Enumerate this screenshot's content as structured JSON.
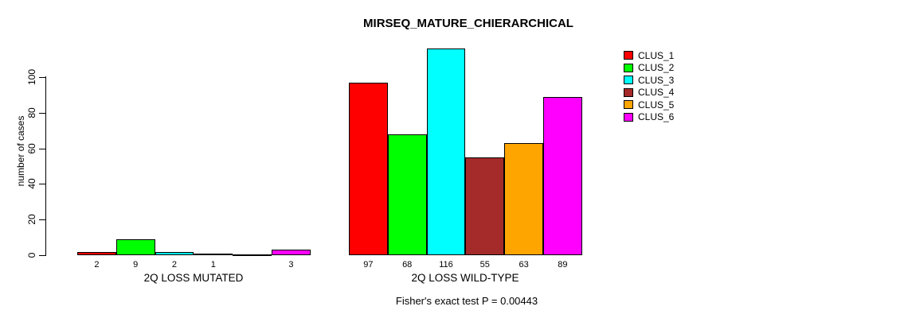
{
  "chart_data": {
    "type": "bar",
    "title": "MIRSEQ_MATURE_CHIERARCHICAL",
    "ylabel": "number of cases",
    "xlabel": "",
    "ylim": [
      0,
      116
    ],
    "yticks": [
      0,
      20,
      40,
      60,
      80,
      100
    ],
    "grid": false,
    "legend_position": "top-right",
    "categories": [
      "2Q LOSS MUTATED",
      "2Q LOSS WILD-TYPE"
    ],
    "series": [
      {
        "name": "CLUS_1",
        "color": "#FF0000",
        "values": [
          2,
          97
        ]
      },
      {
        "name": "CLUS_2",
        "color": "#00FF00",
        "values": [
          9,
          68
        ]
      },
      {
        "name": "CLUS_3",
        "color": "#00FFFF",
        "values": [
          2,
          116
        ]
      },
      {
        "name": "CLUS_4",
        "color": "#A52A2A",
        "values": [
          1,
          55
        ]
      },
      {
        "name": "CLUS_5",
        "color": "#FFA500",
        "values": [
          0,
          63
        ]
      },
      {
        "name": "CLUS_6",
        "color": "#FF00FF",
        "values": [
          3,
          89
        ]
      }
    ],
    "bar_value_labels": [
      [
        "2",
        "9",
        "2",
        "1",
        "",
        "3"
      ],
      [
        "97",
        "68",
        "116",
        "55",
        "63",
        "89"
      ]
    ],
    "annotation": "Fisher's exact test P = 0.00443",
    "bar_border_color": "#000000",
    "background_color": "#FFFFFF"
  }
}
